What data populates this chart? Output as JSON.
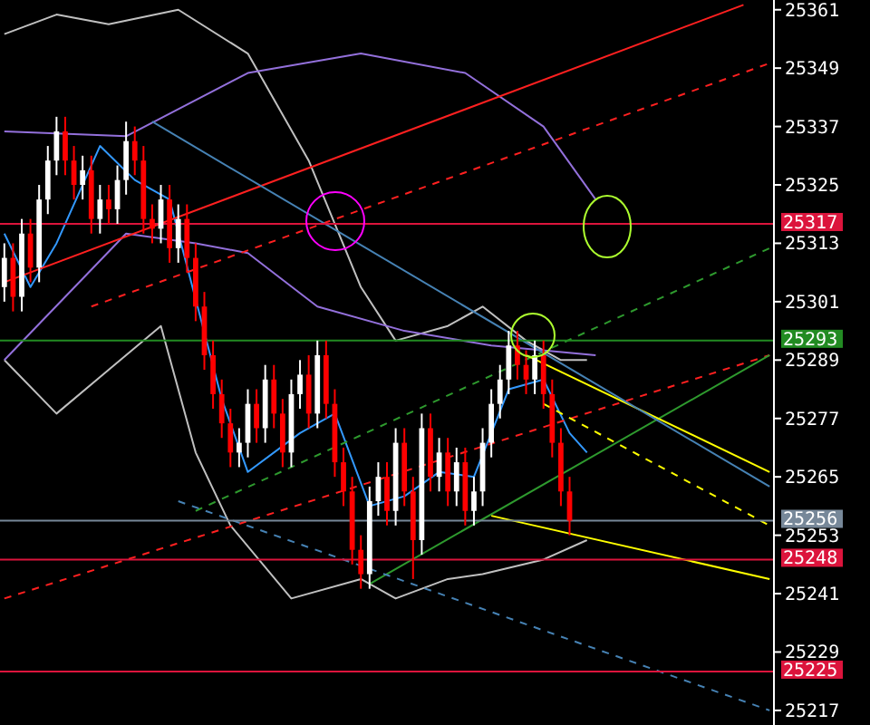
{
  "chart_data": {
    "type": "candlestick",
    "categories": [
      null,
      null,
      null,
      null,
      null,
      null,
      null,
      null,
      null,
      null,
      null,
      null,
      null,
      null,
      null,
      null,
      null,
      null,
      null,
      null,
      null,
      null,
      null,
      null,
      null,
      null,
      null,
      null,
      null,
      null,
      null,
      null,
      null,
      null,
      null,
      null,
      null,
      null,
      null,
      null,
      null,
      null,
      null,
      null,
      null,
      null,
      null,
      null,
      null,
      null,
      null,
      null,
      null,
      null,
      null,
      null,
      null,
      null,
      null,
      null,
      null,
      null,
      null,
      null,
      null,
      null,
      null,
      null,
      null,
      null,
      null,
      null,
      null,
      null,
      null,
      null,
      null,
      null,
      null,
      null,
      null,
      null,
      null,
      null,
      null,
      null,
      null,
      null,
      null
    ],
    "ohlc": [
      [
        25304,
        25313,
        25301,
        25310
      ],
      [
        25310,
        25313,
        25299,
        25302
      ],
      [
        25302,
        25318,
        25299,
        25315
      ],
      [
        25315,
        25318,
        25305,
        25308
      ],
      [
        25308,
        25325,
        25305,
        25322
      ],
      [
        25322,
        25333,
        25319,
        25330
      ],
      [
        25330,
        25339,
        25327,
        25336
      ],
      [
        25336,
        25339,
        25327,
        25330
      ],
      [
        25330,
        25333,
        25322,
        25325
      ],
      [
        25325,
        25331,
        25322,
        25328
      ],
      [
        25328,
        25331,
        25315,
        25318
      ],
      [
        25318,
        25325,
        25315,
        25322
      ],
      [
        25322,
        25325,
        25317,
        25320
      ],
      [
        25320,
        25329,
        25317,
        25326
      ],
      [
        25326,
        25338,
        25323,
        25334
      ],
      [
        25334,
        25337,
        25327,
        25330
      ],
      [
        25330,
        25333,
        25315,
        25318
      ],
      [
        25318,
        25321,
        25313,
        25316
      ],
      [
        25316,
        25325,
        25313,
        25322
      ],
      [
        25322,
        25325,
        25309,
        25312
      ],
      [
        25312,
        25321,
        25309,
        25318
      ],
      [
        25318,
        25321,
        25307,
        25310
      ],
      [
        25310,
        25313,
        25297,
        25300
      ],
      [
        25300,
        25303,
        25287,
        25290
      ],
      [
        25290,
        25293,
        25279,
        25282
      ],
      [
        25282,
        25285,
        25273,
        25276
      ],
      [
        25276,
        25279,
        25267,
        25270
      ],
      [
        25270,
        25275,
        25267,
        25272
      ],
      [
        25272,
        25283,
        25269,
        25280
      ],
      [
        25280,
        25283,
        25272,
        25275
      ],
      [
        25275,
        25288,
        25272,
        25285
      ],
      [
        25285,
        25288,
        25275,
        25278
      ],
      [
        25278,
        25281,
        25267,
        25270
      ],
      [
        25270,
        25285,
        25267,
        25282
      ],
      [
        25282,
        25289,
        25279,
        25286
      ],
      [
        25286,
        25290,
        25275,
        25278
      ],
      [
        25278,
        25293,
        25275,
        25290
      ],
      [
        25290,
        25293,
        25277,
        25280
      ],
      [
        25280,
        25283,
        25265,
        25268
      ],
      [
        25268,
        25271,
        25259,
        25262
      ],
      [
        25262,
        25265,
        25247,
        25250
      ],
      [
        25250,
        25253,
        25242,
        25245
      ],
      [
        25245,
        25263,
        25242,
        25260
      ],
      [
        25260,
        25268,
        25257,
        25265
      ],
      [
        25265,
        25268,
        25255,
        25258
      ],
      [
        25258,
        25275,
        25255,
        25272
      ],
      [
        25272,
        25275,
        25259,
        25262
      ],
      [
        25262,
        25265,
        25244,
        25252
      ],
      [
        25252,
        25278,
        25249,
        25275
      ],
      [
        25275,
        25278,
        25262,
        25265
      ],
      [
        25265,
        25273,
        25262,
        25270
      ],
      [
        25270,
        25273,
        25259,
        25262
      ],
      [
        25262,
        25271,
        25259,
        25268
      ],
      [
        25268,
        25271,
        25255,
        25258
      ],
      [
        25258,
        25265,
        25255,
        25262
      ],
      [
        25262,
        25275,
        25259,
        25272
      ],
      [
        25272,
        25283,
        25269,
        25280
      ],
      [
        25280,
        25288,
        25277,
        25285
      ],
      [
        25285,
        25295,
        25282,
        25292
      ],
      [
        25292,
        25295,
        25285,
        25288
      ],
      [
        25288,
        25291,
        25282,
        25285
      ],
      [
        25285,
        25293,
        25282,
        25290
      ],
      [
        25290,
        25293,
        25279,
        25282
      ],
      [
        25282,
        25285,
        25269,
        25272
      ],
      [
        25272,
        25275,
        25259,
        25262
      ],
      [
        25262,
        25265,
        25253,
        25256
      ],
      null,
      null,
      null,
      null,
      null,
      null,
      null,
      null,
      null,
      null,
      null,
      null,
      null,
      null,
      null,
      null,
      null,
      null,
      null,
      null,
      null,
      null,
      null
    ],
    "ylim": [
      25214,
      25363
    ],
    "yticks": [
      25361,
      25349,
      25337,
      25325,
      25313,
      25301,
      25289,
      25277,
      25265,
      25253,
      25241,
      25229,
      25217
    ],
    "tick_labels": "y",
    "series": [
      {
        "type": "line",
        "color": "#c0c0c0",
        "line_style": "solid",
        "values": [
          25356,
          null,
          null,
          null,
          null,
          null,
          25360,
          null,
          null,
          null,
          null,
          null,
          25358,
          null,
          null,
          null,
          null,
          null,
          null,
          null,
          25361,
          null,
          null,
          null,
          null,
          null,
          null,
          null,
          25352,
          null,
          null,
          null,
          null,
          null,
          null,
          25330,
          null,
          null,
          null,
          null,
          null,
          25304,
          null,
          null,
          null,
          25293,
          null,
          null,
          null,
          null,
          null,
          25296,
          null,
          null,
          null,
          25300,
          null,
          null,
          null,
          null,
          25293,
          null,
          null,
          null,
          25289,
          null,
          null,
          25289,
          null,
          null,
          null,
          null,
          null,
          null,
          null,
          null,
          null,
          null,
          null,
          null,
          null,
          null,
          null,
          null,
          null,
          null,
          null,
          null,
          null
        ]
      },
      {
        "type": "line",
        "color": "#c0c0c0",
        "line_style": "solid",
        "values": [
          25289,
          null,
          null,
          null,
          null,
          null,
          25278,
          null,
          null,
          null,
          null,
          null,
          25287,
          null,
          null,
          null,
          null,
          null,
          25296,
          null,
          null,
          null,
          25270,
          null,
          null,
          null,
          25255,
          null,
          null,
          null,
          null,
          null,
          null,
          25240,
          null,
          null,
          null,
          null,
          null,
          null,
          null,
          25244,
          null,
          null,
          null,
          25240,
          null,
          null,
          null,
          null,
          null,
          25244,
          null,
          null,
          null,
          25245,
          null,
          null,
          null,
          null,
          null,
          null,
          25248,
          null,
          null,
          null,
          null,
          25252,
          null,
          null,
          null,
          null,
          null,
          null,
          null,
          null,
          null,
          null,
          null,
          null,
          null,
          null,
          null,
          null,
          null,
          null,
          null,
          null,
          null
        ]
      },
      {
        "type": "line",
        "color": "#3399ff",
        "line_style": "solid",
        "values": [
          25315,
          null,
          null,
          25304,
          null,
          null,
          25313,
          null,
          null,
          null,
          null,
          25333,
          null,
          null,
          null,
          25326,
          null,
          null,
          null,
          25322,
          null,
          null,
          null,
          null,
          null,
          25281,
          null,
          null,
          25266,
          null,
          null,
          null,
          null,
          null,
          25274,
          null,
          null,
          null,
          25278,
          null,
          null,
          null,
          25259,
          null,
          null,
          null,
          25261,
          null,
          null,
          null,
          25266,
          null,
          null,
          null,
          25265,
          null,
          null,
          null,
          25283,
          null,
          null,
          null,
          25285,
          null,
          null,
          25274,
          null,
          25270,
          null,
          null,
          null,
          null,
          null,
          null,
          null,
          null,
          null,
          null,
          null,
          null,
          null,
          null,
          null,
          null,
          null,
          null,
          null,
          null,
          null
        ]
      },
      {
        "type": "line",
        "color": "#9370db",
        "line_style": "solid",
        "values": [
          25336,
          null,
          null,
          null,
          null,
          null,
          null,
          null,
          null,
          null,
          null,
          null,
          null,
          null,
          25335,
          null,
          null,
          null,
          null,
          null,
          null,
          null,
          null,
          null,
          null,
          null,
          null,
          null,
          25348,
          null,
          null,
          null,
          null,
          null,
          null,
          null,
          null,
          null,
          null,
          null,
          null,
          25352,
          null,
          null,
          null,
          null,
          null,
          null,
          null,
          null,
          null,
          null,
          null,
          25348,
          null,
          null,
          null,
          null,
          null,
          null,
          null,
          null,
          25337,
          null,
          null,
          null,
          null,
          null,
          25322,
          null,
          null,
          null,
          null,
          null,
          null,
          null,
          null,
          null,
          null,
          null,
          null,
          null,
          null,
          null,
          null,
          null,
          null,
          null,
          null
        ]
      },
      {
        "type": "line",
        "color": "#9370db",
        "line_style": "solid",
        "values": [
          25289,
          null,
          null,
          null,
          null,
          null,
          null,
          null,
          null,
          null,
          null,
          null,
          null,
          null,
          25315,
          null,
          null,
          null,
          null,
          null,
          null,
          null,
          25313,
          null,
          null,
          null,
          null,
          null,
          25311,
          null,
          null,
          null,
          null,
          null,
          null,
          null,
          25300,
          null,
          null,
          null,
          null,
          null,
          null,
          null,
          null,
          null,
          25295,
          null,
          null,
          null,
          null,
          null,
          null,
          null,
          null,
          null,
          25292,
          null,
          null,
          null,
          null,
          null,
          null,
          null,
          null,
          null,
          null,
          null,
          25290,
          null,
          null,
          null,
          null,
          null,
          null,
          null,
          null,
          null,
          null,
          null,
          null,
          null,
          null,
          null,
          null,
          null,
          null,
          null,
          null
        ]
      },
      {
        "type": "line",
        "color": "#ff2020",
        "line_style": "solid",
        "values": [
          25305,
          null,
          null,
          null,
          null,
          null,
          null,
          null,
          null,
          null,
          null,
          null,
          null,
          null,
          null,
          null,
          null,
          null,
          null,
          null,
          null,
          null,
          null,
          null,
          null,
          null,
          null,
          null,
          null,
          null,
          null,
          null,
          null,
          null,
          null,
          null,
          null,
          null,
          null,
          null,
          null,
          null,
          null,
          null,
          null,
          null,
          null,
          null,
          null,
          null,
          null,
          null,
          null,
          null,
          null,
          null,
          null,
          null,
          null,
          null,
          null,
          null,
          null,
          null,
          null,
          null,
          null,
          null,
          null,
          null,
          null,
          null,
          null,
          null,
          null,
          null,
          null,
          null,
          null,
          null,
          null,
          null,
          null,
          null,
          null,
          25362,
          null,
          null,
          null
        ]
      },
      {
        "type": "line",
        "color": "#ff2020",
        "line_style": "dashed",
        "values": [
          25240,
          null,
          null,
          null,
          null,
          null,
          null,
          null,
          null,
          null,
          null,
          null,
          null,
          null,
          null,
          null,
          null,
          null,
          null,
          null,
          null,
          null,
          null,
          null,
          null,
          null,
          null,
          null,
          null,
          null,
          null,
          null,
          null,
          null,
          null,
          null,
          null,
          null,
          null,
          null,
          null,
          null,
          null,
          null,
          null,
          null,
          null,
          null,
          null,
          null,
          null,
          null,
          null,
          null,
          null,
          null,
          null,
          null,
          null,
          null,
          null,
          null,
          null,
          null,
          null,
          null,
          null,
          null,
          null,
          null,
          null,
          null,
          null,
          null,
          null,
          null,
          null,
          null,
          null,
          null,
          null,
          null,
          null,
          null,
          null,
          null,
          null,
          null,
          25290
        ]
      },
      {
        "type": "line",
        "color": "#ff2020",
        "line_style": "dashed",
        "values": [
          null,
          null,
          null,
          null,
          null,
          null,
          null,
          null,
          null,
          null,
          25300,
          null,
          null,
          null,
          null,
          null,
          null,
          null,
          null,
          null,
          null,
          null,
          null,
          null,
          null,
          null,
          null,
          null,
          null,
          null,
          null,
          null,
          null,
          null,
          null,
          null,
          null,
          null,
          null,
          null,
          null,
          null,
          null,
          null,
          null,
          null,
          null,
          null,
          null,
          null,
          null,
          null,
          null,
          null,
          null,
          null,
          null,
          null,
          null,
          null,
          null,
          null,
          null,
          null,
          null,
          null,
          null,
          null,
          null,
          null,
          null,
          null,
          null,
          null,
          null,
          null,
          null,
          null,
          null,
          null,
          null,
          null,
          null,
          null,
          null,
          null,
          null,
          null,
          25350
        ]
      },
      {
        "type": "line",
        "color": "#2e9a2e",
        "line_style": "solid",
        "values": [
          null,
          null,
          null,
          null,
          null,
          null,
          null,
          null,
          null,
          null,
          null,
          null,
          null,
          null,
          null,
          null,
          null,
          null,
          null,
          null,
          null,
          null,
          null,
          null,
          null,
          null,
          null,
          null,
          null,
          null,
          null,
          null,
          null,
          null,
          null,
          null,
          null,
          null,
          null,
          null,
          null,
          null,
          25243,
          null,
          null,
          null,
          null,
          null,
          null,
          null,
          null,
          null,
          null,
          null,
          null,
          null,
          null,
          null,
          null,
          null,
          null,
          null,
          null,
          null,
          null,
          null,
          null,
          null,
          null,
          null,
          null,
          null,
          null,
          null,
          null,
          null,
          null,
          null,
          null,
          null,
          null,
          null,
          null,
          null,
          null,
          null,
          null,
          null,
          25290
        ]
      },
      {
        "type": "line",
        "color": "#2e9a2e",
        "line_style": "dashed",
        "values": [
          null,
          null,
          null,
          null,
          null,
          null,
          null,
          null,
          null,
          null,
          null,
          null,
          null,
          null,
          null,
          null,
          null,
          null,
          null,
          null,
          null,
          null,
          25258,
          null,
          null,
          null,
          null,
          null,
          null,
          null,
          null,
          null,
          null,
          null,
          null,
          null,
          null,
          null,
          null,
          null,
          null,
          null,
          null,
          null,
          null,
          null,
          null,
          null,
          null,
          null,
          null,
          null,
          null,
          null,
          null,
          null,
          null,
          null,
          null,
          null,
          null,
          null,
          null,
          null,
          null,
          null,
          null,
          null,
          null,
          null,
          null,
          null,
          null,
          null,
          null,
          null,
          null,
          null,
          null,
          null,
          null,
          null,
          null,
          null,
          null,
          null,
          null,
          null,
          25312
        ]
      },
      {
        "type": "line",
        "color": "#ffff00",
        "line_style": "solid",
        "values": [
          null,
          null,
          null,
          null,
          null,
          null,
          null,
          null,
          null,
          null,
          null,
          null,
          null,
          null,
          null,
          null,
          null,
          null,
          null,
          null,
          null,
          null,
          null,
          null,
          null,
          null,
          null,
          null,
          null,
          null,
          null,
          null,
          null,
          null,
          null,
          null,
          null,
          null,
          null,
          null,
          null,
          null,
          null,
          null,
          null,
          null,
          null,
          null,
          null,
          null,
          null,
          null,
          null,
          null,
          null,
          null,
          null,
          null,
          null,
          null,
          25290,
          null,
          null,
          null,
          null,
          null,
          null,
          null,
          null,
          null,
          null,
          null,
          null,
          null,
          null,
          null,
          null,
          null,
          null,
          null,
          null,
          null,
          null,
          null,
          null,
          null,
          null,
          null,
          25266
        ]
      },
      {
        "type": "line",
        "color": "#ffff00",
        "line_style": "solid",
        "values": [
          null,
          null,
          null,
          null,
          null,
          null,
          null,
          null,
          null,
          null,
          null,
          null,
          null,
          null,
          null,
          null,
          null,
          null,
          null,
          null,
          null,
          null,
          null,
          null,
          null,
          null,
          null,
          null,
          null,
          null,
          null,
          null,
          null,
          null,
          null,
          null,
          null,
          null,
          null,
          null,
          null,
          null,
          null,
          null,
          null,
          null,
          null,
          null,
          null,
          null,
          null,
          null,
          null,
          null,
          null,
          null,
          25257,
          null,
          null,
          null,
          null,
          null,
          null,
          null,
          null,
          null,
          null,
          null,
          null,
          null,
          null,
          null,
          null,
          null,
          null,
          null,
          null,
          null,
          null,
          null,
          null,
          null,
          null,
          null,
          null,
          null,
          null,
          null,
          25244
        ]
      },
      {
        "type": "line",
        "color": "#ffff00",
        "line_style": "dashed",
        "values": [
          null,
          null,
          null,
          null,
          null,
          null,
          null,
          null,
          null,
          null,
          null,
          null,
          null,
          null,
          null,
          null,
          null,
          null,
          null,
          null,
          null,
          null,
          null,
          null,
          null,
          null,
          null,
          null,
          null,
          null,
          null,
          null,
          null,
          null,
          null,
          null,
          null,
          null,
          null,
          null,
          null,
          null,
          null,
          null,
          null,
          null,
          null,
          null,
          null,
          null,
          null,
          null,
          null,
          null,
          null,
          null,
          null,
          null,
          null,
          null,
          null,
          null,
          25280,
          null,
          null,
          null,
          null,
          null,
          null,
          null,
          null,
          null,
          null,
          null,
          null,
          null,
          null,
          null,
          null,
          null,
          null,
          null,
          null,
          null,
          null,
          null,
          null,
          null,
          25255
        ]
      },
      {
        "type": "line",
        "color": "#4682b4",
        "line_style": "solid",
        "values": [
          null,
          null,
          null,
          null,
          null,
          null,
          null,
          null,
          null,
          null,
          null,
          null,
          null,
          null,
          null,
          null,
          null,
          25338,
          null,
          null,
          null,
          null,
          null,
          null,
          null,
          null,
          null,
          null,
          null,
          null,
          null,
          null,
          null,
          null,
          null,
          null,
          null,
          null,
          null,
          null,
          null,
          null,
          null,
          null,
          null,
          null,
          null,
          null,
          null,
          null,
          null,
          null,
          null,
          null,
          null,
          null,
          null,
          null,
          null,
          null,
          null,
          null,
          null,
          null,
          null,
          null,
          null,
          null,
          null,
          null,
          null,
          null,
          null,
          null,
          null,
          null,
          null,
          null,
          null,
          null,
          null,
          null,
          null,
          null,
          null,
          null,
          null,
          null,
          25263
        ]
      },
      {
        "type": "line",
        "color": "#4682b4",
        "line_style": "dashed",
        "values": [
          null,
          null,
          null,
          null,
          null,
          null,
          null,
          null,
          null,
          null,
          null,
          null,
          null,
          null,
          null,
          null,
          null,
          null,
          null,
          null,
          25260,
          null,
          null,
          null,
          null,
          null,
          null,
          null,
          null,
          null,
          null,
          null,
          null,
          null,
          null,
          null,
          null,
          null,
          null,
          null,
          null,
          null,
          null,
          null,
          null,
          null,
          null,
          null,
          null,
          null,
          null,
          null,
          null,
          null,
          null,
          null,
          null,
          null,
          null,
          null,
          null,
          null,
          null,
          null,
          null,
          null,
          null,
          null,
          null,
          null,
          null,
          null,
          null,
          null,
          null,
          null,
          null,
          null,
          null,
          null,
          null,
          null,
          null,
          null,
          null,
          null,
          null,
          null,
          25217
        ]
      }
    ],
    "ref_lines": [
      {
        "axis": "y",
        "value": 25317,
        "label": "25317",
        "color": "#dc143c"
      },
      {
        "axis": "y",
        "value": 25293,
        "label": "25293",
        "color": "#228b22"
      },
      {
        "axis": "y",
        "value": 25256,
        "label": "25256",
        "color": "#778899"
      },
      {
        "axis": "y",
        "value": 25248,
        "label": "25248",
        "color": "#dc143c"
      },
      {
        "axis": "y",
        "value": 25225,
        "label": "25225",
        "color": "#dc143c"
      }
    ]
  }
}
